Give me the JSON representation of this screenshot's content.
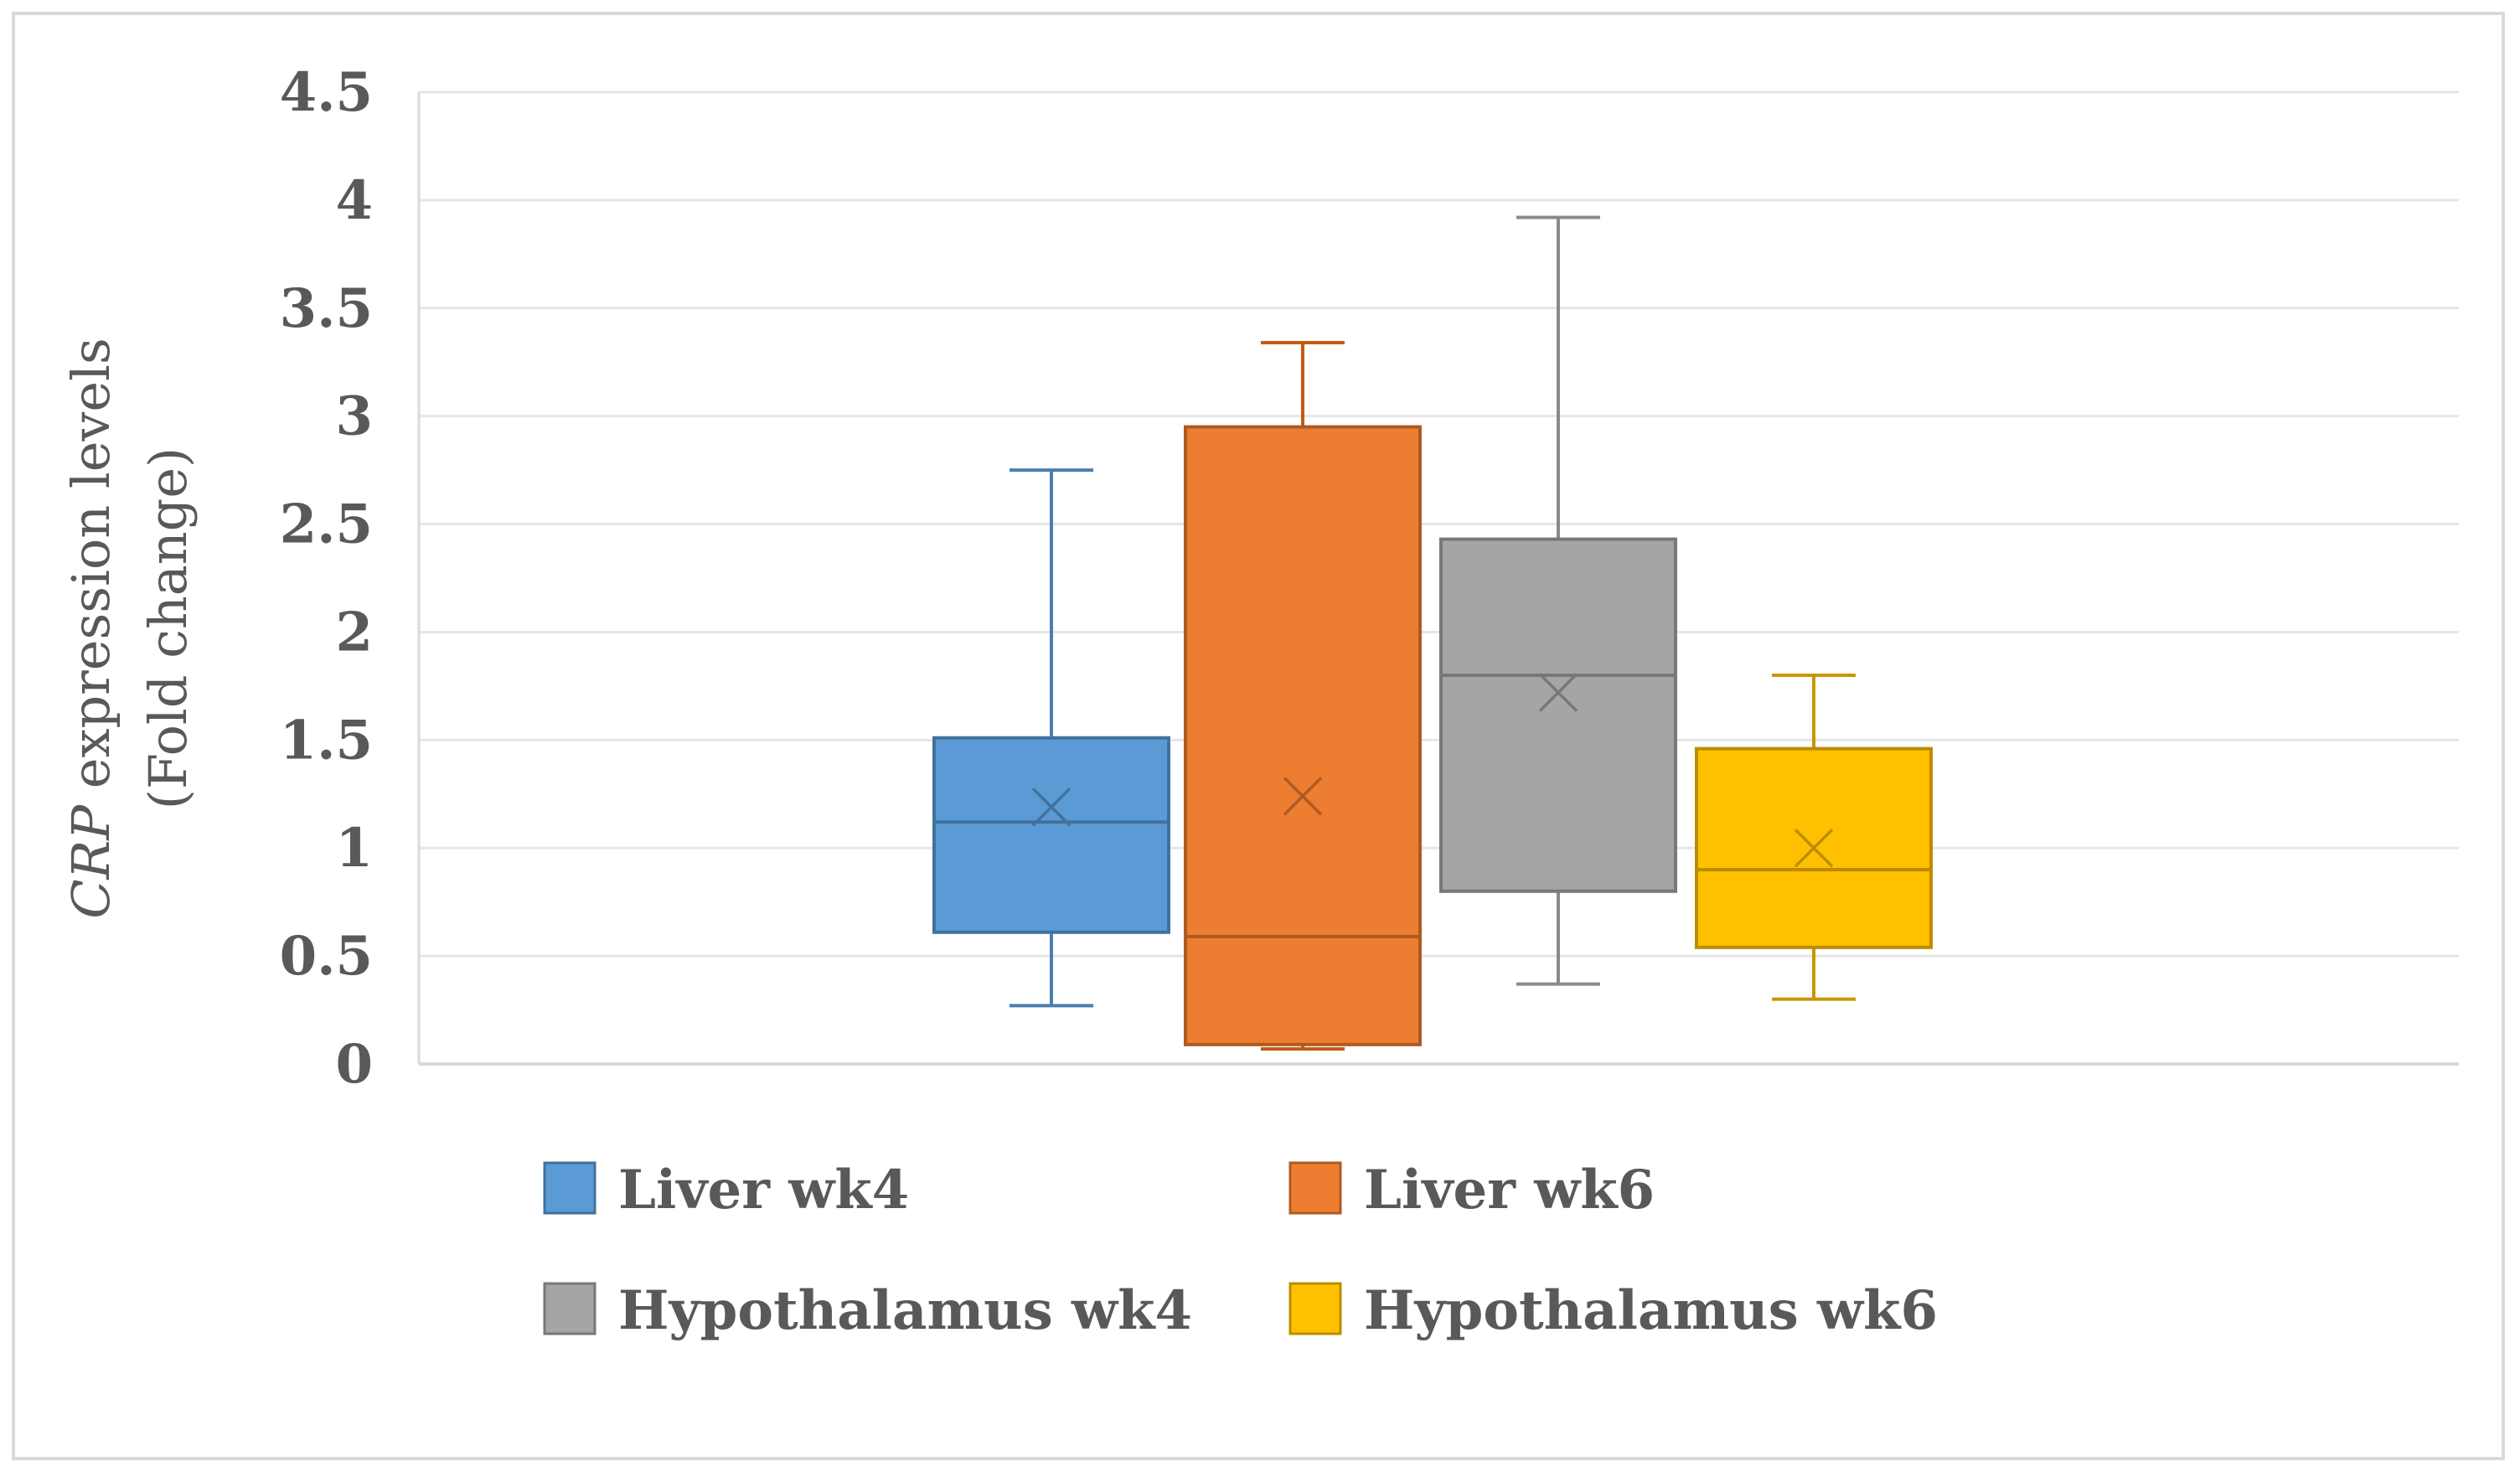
{
  "chart_data": {
    "type": "box",
    "title": "",
    "xlabel": "",
    "ylabel": {
      "italic_part": "CRP",
      "line1_rest": " expression levels",
      "line2": "(Fold change)"
    },
    "ylim": [
      0,
      4.5
    ],
    "yticks": [
      "0",
      "0.5",
      "1",
      "1.5",
      "2",
      "2.5",
      "3",
      "3.5",
      "4",
      "4.5"
    ],
    "grid": true,
    "legend_position": "bottom",
    "series": [
      {
        "name": "Liver wk4",
        "color": "#5b9bd5",
        "edge": "#41719c",
        "whisker": "#4a7fb0",
        "min": 0.27,
        "q1": 0.61,
        "median": 1.12,
        "q3": 1.51,
        "max": 2.75,
        "mean": 1.19
      },
      {
        "name": "Liver wk6",
        "color": "#ed7d31",
        "edge": "#ae5a21",
        "whisker": "#c55a11",
        "min": 0.07,
        "q1": 0.09,
        "median": 0.59,
        "q3": 2.95,
        "max": 3.34,
        "mean": 1.24
      },
      {
        "name": "Hypothalamus wk4",
        "color": "#a5a5a5",
        "edge": "#787878",
        "whisker": "#8a8a8a",
        "min": 0.37,
        "q1": 0.8,
        "median": 1.8,
        "q3": 2.43,
        "max": 3.92,
        "mean": 1.72
      },
      {
        "name": "Hypothalamus wk6",
        "color": "#ffc000",
        "edge": "#bc8c00",
        "whisker": "#c99700",
        "min": 0.3,
        "q1": 0.54,
        "median": 0.9,
        "q3": 1.46,
        "max": 1.8,
        "mean": 1.0
      }
    ]
  }
}
